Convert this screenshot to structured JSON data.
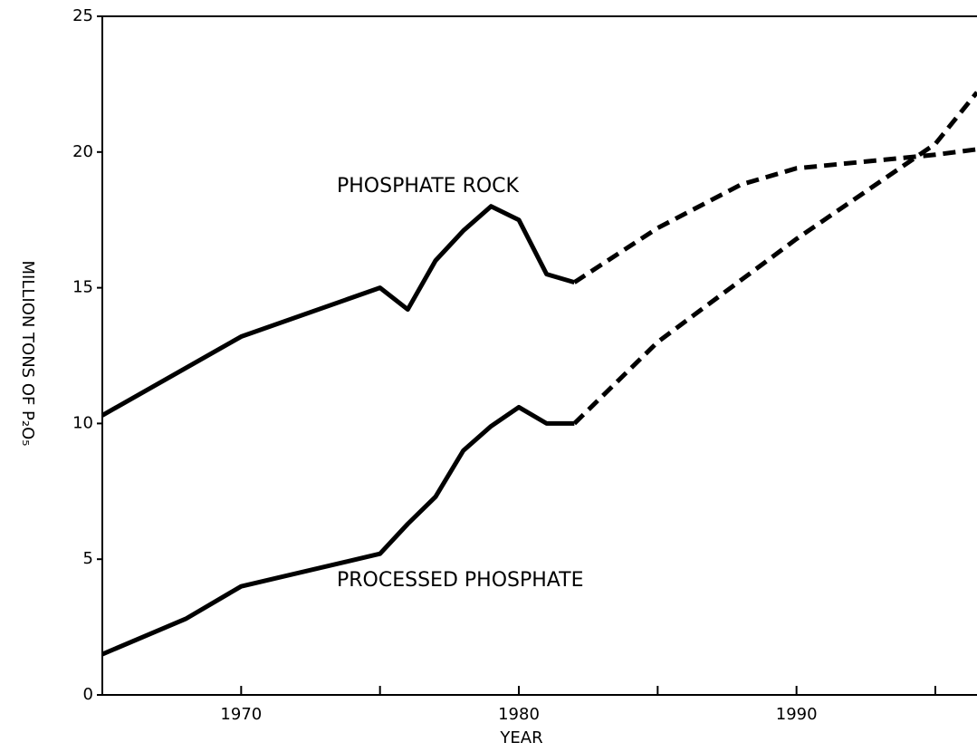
{
  "chart_data": {
    "type": "line",
    "xlabel": "YEAR",
    "ylabel": "MILLION TONS OF P₂O₅",
    "xlim": [
      1965,
      1996.5
    ],
    "xticks": [
      1970,
      1980,
      1990
    ],
    "xminor_ticks": [
      1975,
      1985,
      1995
    ],
    "ylim": [
      0,
      25
    ],
    "yticks": [
      0,
      5,
      10,
      15,
      20,
      25
    ],
    "series": [
      {
        "name": "PHOSPHATE ROCK",
        "color": "#000000",
        "x": [
          1965,
          1970,
          1975,
          1976,
          1977,
          1978,
          1979,
          1980,
          1981,
          1982
        ],
        "values": [
          10.3,
          13.2,
          15.0,
          14.2,
          16.0,
          17.1,
          18.0,
          17.5,
          15.5,
          15.2
        ],
        "projection_x": [
          1982,
          1985,
          1988,
          1990,
          1995,
          1996.5
        ],
        "projection_values": [
          15.2,
          17.2,
          18.8,
          19.4,
          19.9,
          20.1
        ]
      },
      {
        "name": "PROCESSED PHOSPHATE",
        "color": "#000000",
        "x": [
          1965,
          1968,
          1970,
          1975,
          1976,
          1977,
          1978,
          1979,
          1980,
          1981,
          1982
        ],
        "values": [
          1.5,
          2.8,
          4.0,
          5.2,
          6.3,
          7.3,
          9.0,
          9.9,
          10.6,
          10.0,
          10.0
        ],
        "projection_x": [
          1982,
          1985,
          1990,
          1995,
          1996.5
        ],
        "projection_values": [
          10.0,
          13.0,
          16.8,
          20.3,
          22.2
        ]
      }
    ]
  }
}
